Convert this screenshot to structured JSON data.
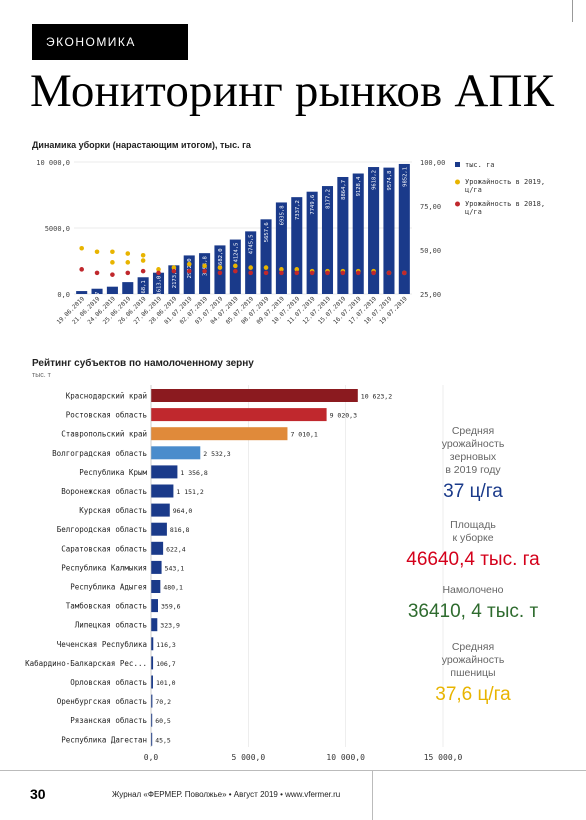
{
  "header": {
    "section": "ЭКОНОМИКА",
    "title": "Мониторинг рынков АПК"
  },
  "colors": {
    "bar_blue": "#1a3a8a",
    "yield_2019": "#e8b400",
    "yield_2018": "#c0282d",
    "rank_top1": "#8b1a1f",
    "rank_top2": "#c0282d",
    "rank_top3": "#e08a3a",
    "rank_top4": "#4a8ccc",
    "rank_rest": "#1a3a8a",
    "stat_blue": "#1a3a8a",
    "stat_red": "#d4001a",
    "stat_green": "#2e6b2e",
    "stat_yellow": "#e8b400"
  },
  "chart_data": [
    {
      "type": "bar",
      "title": "Динамика уборки (нарастающим итогом), тыс. га",
      "categories": [
        "19.06.2019",
        "21.06.2019",
        "24.06.2019",
        "25.06.2019",
        "26.06.2019",
        "27.06.2019",
        "28.06.2019",
        "01.07.2019",
        "02.07.2019",
        "03.07.2019",
        "04.07.2019",
        "05.07.2019",
        "08.07.2019",
        "09.07.2019",
        "10.07.2019",
        "11.07.2019",
        "12.07.2019",
        "15.07.2019",
        "16.07.2019",
        "17.07.2019",
        "18.07.2019",
        "19.07.2019"
      ],
      "series": [
        {
          "name": "тыс. га",
          "values": [
            222.4,
            399.7,
            554,
            900,
            1268.1,
            1613.0,
            2173.2,
            2922.0,
            3094.8,
            3682.0,
            4124.5,
            4745.5,
            5657.6,
            6935.8,
            7337.2,
            7749.6,
            8177.2,
            8864.7,
            9128.4,
            9618.2,
            9574.8,
            9852.1
          ]
        },
        {
          "name": "Урожайность в 2019, ц/га",
          "values": [
            null,
            null,
            43,
            43,
            44,
            39,
            40,
            42,
            41,
            40,
            41,
            40,
            40,
            39,
            39,
            38,
            38,
            38,
            38,
            38,
            37,
            37
          ]
        },
        {
          "name": "Урожайность в 2018, ц/га",
          "values": [
            39,
            37,
            36,
            37,
            38,
            37,
            38,
            38,
            38,
            37,
            38,
            37,
            37,
            37,
            37,
            37,
            37,
            37,
            37,
            37,
            37,
            37
          ]
        },
        {
          "name": "",
          "values": [
            51,
            49,
            49,
            48,
            47,
            null,
            null,
            null,
            null,
            null,
            null,
            null,
            null,
            null,
            null,
            null,
            null,
            null,
            null,
            null,
            null,
            null
          ]
        }
      ],
      "bar_labels": [
        "222,4",
        "399,7",
        "",
        "",
        "1268,1",
        "1613,0",
        "2173,2",
        "2922,0",
        "3094,8",
        "3682,0",
        "4124,5",
        "4745,5",
        "5657,6",
        "6935,8",
        "7337,2",
        "7749,6",
        "8177,2",
        "8864,7",
        "9128,4",
        "9618,2",
        "9574,8",
        "9852,1"
      ],
      "y_ticks": [
        "0,0",
        "5000,0",
        "10 000,0"
      ],
      "y2_ticks": [
        "25,00",
        "50,00",
        "75,00",
        "100,00"
      ],
      "ylim": [
        0,
        10000
      ],
      "y2lim": [
        25,
        100
      ],
      "legend": [
        "тыс. га",
        "Урожайность в 2019, ц/га",
        "Урожайность в 2018, ц/га"
      ]
    },
    {
      "type": "bar",
      "orientation": "horizontal",
      "title": "Рейтинг субъектов по намолоченному зерну",
      "subtitle": "тыс. т",
      "categories": [
        "Краснодарский край",
        "Ростовская область",
        "Ставропольский край",
        "Волгоградская область",
        "Республика Крым",
        "Воронежская область",
        "Курская область",
        "Белгородская область",
        "Саратовская область",
        "Республика Калмыкия",
        "Республика Адыгея",
        "Тамбовская область",
        "Липецкая область",
        "Чеченская Республика",
        "Кабардино-Балкарская Рес...",
        "Орловская область",
        "Оренбургская область",
        "Рязанская область",
        "Республика Дагестан"
      ],
      "values": [
        10623.2,
        9020.3,
        7010.1,
        2532.3,
        1356.8,
        1151.2,
        964.0,
        816.8,
        622.4,
        543.1,
        480.1,
        359.6,
        323.9,
        116.3,
        106.7,
        101.0,
        70.2,
        60.5,
        45.5
      ],
      "value_labels": [
        "10 623,2",
        "9 020,3",
        "7 010,1",
        "2 532,3",
        "1 356,8",
        "1 151,2",
        "964,0",
        "816,8",
        "622,4",
        "543,1",
        "480,1",
        "359,6",
        "323,9",
        "116,3",
        "106,7",
        "101,0",
        "70,2",
        "60,5",
        "45,5"
      ],
      "x_ticks": [
        "0,0",
        "5 000,0",
        "10 000,0",
        "15 000,0"
      ],
      "xlim": [
        0,
        15000
      ]
    }
  ],
  "stats": [
    {
      "label": "Средняя\nурожайность\nзерновых\nв 2019 году",
      "value": "37 ц/га",
      "color": "#1a3a8a"
    },
    {
      "label": "Площадь\nк уборке",
      "value": "46640,4 тыс. га",
      "color": "#d4001a"
    },
    {
      "label": "Намолочено",
      "value": "36410, 4 тыс. т",
      "color": "#2e6b2e"
    },
    {
      "label": "Средняя\nурожайность\nпшеницы",
      "value": "37,6 ц/га",
      "color": "#e8b400"
    }
  ],
  "footer": {
    "page": "30",
    "text": "Журнал «ФЕРМЕР. Поволжье» • Август 2019 • www.vfermer.ru"
  }
}
